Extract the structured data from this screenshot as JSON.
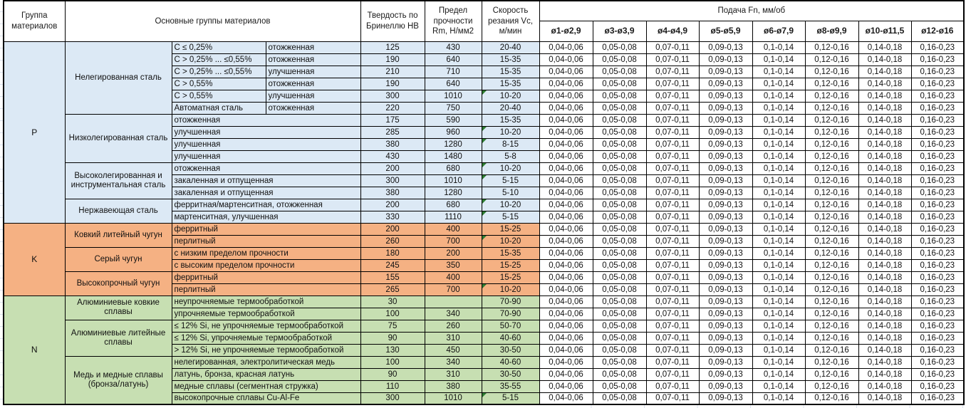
{
  "header": {
    "col_group": "Группа материалов",
    "col_main_groups": "Основные группы материалов",
    "col_hardness": "Твердость по Бринеллю НВ",
    "col_strength": "Предел прочности Rm, Н/мм2",
    "col_speed": "Скорость резания Vc, м/мин",
    "feed_title": "Подача Fn, мм/об",
    "feed_columns": [
      "ø1-ø2,9",
      "ø3-ø3,9",
      "ø4-ø4,9",
      "ø5-ø5,9",
      "ø6-ø7,9",
      "ø8-ø9,9",
      "ø10-ø11,5",
      "ø12-ø16"
    ]
  },
  "feed_values": [
    "0,04-0,06",
    "0,05-0,08",
    "0,07-0,11",
    "0,09-0,13",
    "0,1-0,14",
    "0,12-0,16",
    "0,14-0,18",
    "0,16-0,23"
  ],
  "colors": {
    "group_p": "#dce9f5",
    "group_k": "#f5b183",
    "group_n": "#c7dfb2",
    "indicator": "#2e7d32"
  },
  "groups": [
    {
      "letter": "P",
      "subgroups": [
        {
          "name": "Нелегированная сталь",
          "rows": [
            {
              "composition": "C ≤ 0,25%",
              "state": "отожженная",
              "hb": "125",
              "rm": "430",
              "vc": "20-40",
              "indicator": false
            },
            {
              "composition": "C > 0,25% ... ≤0,55%",
              "state": "отожженная",
              "hb": "190",
              "rm": "640",
              "vc": "15-35",
              "indicator": false
            },
            {
              "composition": "C > 0,25% ... ≤0,55%",
              "state": "улучшенная",
              "hb": "210",
              "rm": "710",
              "vc": "15-35",
              "indicator": false
            },
            {
              "composition": "C > 0,55%",
              "state": "отожженная",
              "hb": "190",
              "rm": "640",
              "vc": "15-35",
              "indicator": false
            },
            {
              "composition": "C > 0,55%",
              "state": "улучшенная",
              "hb": "300",
              "rm": "1010",
              "vc": "10-20",
              "indicator": true
            },
            {
              "composition": "Автоматная сталь",
              "state": "отожженная",
              "hb": "220",
              "rm": "750",
              "vc": "20-40",
              "indicator": false
            }
          ]
        },
        {
          "name": "Низколегированная сталь",
          "rows": [
            {
              "state": "отожженная",
              "hb": "175",
              "rm": "590",
              "vc": "15-35",
              "indicator": false
            },
            {
              "state": "улучшенная",
              "hb": "285",
              "rm": "960",
              "vc": "10-20",
              "indicator": true
            },
            {
              "state": "улучшенная",
              "hb": "380",
              "rm": "1280",
              "vc": "8-15",
              "indicator": true
            },
            {
              "state": "улучшенная",
              "hb": "430",
              "rm": "1480",
              "vc": "5-8",
              "indicator": false
            }
          ]
        },
        {
          "name": "Высоколегированная и инструментальная сталь",
          "rows": [
            {
              "state": "отожженная",
              "hb": "200",
              "rm": "680",
              "vc": "10-20",
              "indicator": true
            },
            {
              "state": "закаленная и отпущенная",
              "hb": "300",
              "rm": "1010",
              "vc": "5-15",
              "indicator": true
            },
            {
              "state": "закаленная и отпущенная",
              "hb": "380",
              "rm": "1280",
              "vc": "5-10",
              "indicator": false
            }
          ]
        },
        {
          "name": "Нержавеющая сталь",
          "rows": [
            {
              "state": "ферритная/мартенситная, отожженная",
              "hb": "200",
              "rm": "680",
              "vc": "10-20",
              "indicator": true
            },
            {
              "state": "мартенситная, улучшенная",
              "hb": "330",
              "rm": "1110",
              "vc": "5-15",
              "indicator": true
            }
          ]
        }
      ]
    },
    {
      "letter": "K",
      "subgroups": [
        {
          "name": "Ковкий литейный чугун",
          "rows": [
            {
              "state": "ферритный",
              "hb": "200",
              "rm": "400",
              "vc": "15-25",
              "indicator": false
            },
            {
              "state": "перлитный",
              "hb": "260",
              "rm": "700",
              "vc": "10-20",
              "indicator": true
            }
          ]
        },
        {
          "name": "Серый чугун",
          "rows": [
            {
              "state": "с низким пределом прочности",
              "hb": "180",
              "rm": "200",
              "vc": "15-35",
              "indicator": false
            },
            {
              "state": "с высоким пределом прочности",
              "hb": "245",
              "rm": "350",
              "vc": "15-25",
              "indicator": false
            }
          ]
        },
        {
          "name": "Высокопрочный чугун",
          "rows": [
            {
              "state": "ферритный",
              "hb": "155",
              "rm": "400",
              "vc": "15-25",
              "indicator": false
            },
            {
              "state": "перлитный",
              "hb": "265",
              "rm": "700",
              "vc": "10-20",
              "indicator": true
            }
          ]
        }
      ]
    },
    {
      "letter": "N",
      "subgroups": [
        {
          "name": "Алюминиевые ковкие сплавы",
          "rows": [
            {
              "state": "неупрочняемые термообработкой",
              "hb": "30",
              "rm": "",
              "vc": "70-90",
              "indicator": false
            },
            {
              "state": "упрочняемые термообработкой",
              "hb": "100",
              "rm": "340",
              "vc": "70-90",
              "indicator": false
            }
          ]
        },
        {
          "name": "Алюминиевые литейные сплавы",
          "rows": [
            {
              "state": "≤ 12% Si, не упрочняемые термообработкой",
              "hb": "75",
              "rm": "260",
              "vc": "50-70",
              "indicator": false
            },
            {
              "state": "≤ 12% Si, упрочняемые термообработкой",
              "hb": "90",
              "rm": "310",
              "vc": "40-60",
              "indicator": false
            },
            {
              "state": "> 12% Si, не упрочняемые термообработкой",
              "hb": "130",
              "rm": "450",
              "vc": "30-50",
              "indicator": false
            }
          ]
        },
        {
          "name": "Медь и медные сплавы (бронза/латунь)",
          "rows": [
            {
              "state": "нелегированная, электролитическая медь",
              "hb": "100",
              "rm": "340",
              "vc": "40-60",
              "indicator": false
            },
            {
              "state": "латунь, бронза, красная латунь",
              "hb": "90",
              "rm": "310",
              "vc": "30-50",
              "indicator": false
            },
            {
              "state": "медные сплавы (сегментная стружка)",
              "hb": "110",
              "rm": "380",
              "vc": "35-55",
              "indicator": false
            },
            {
              "state": "высокопрочные сплавы Cu-Al-Fe",
              "hb": "300",
              "rm": "1010",
              "vc": "5-15",
              "indicator": true
            }
          ]
        }
      ]
    }
  ]
}
